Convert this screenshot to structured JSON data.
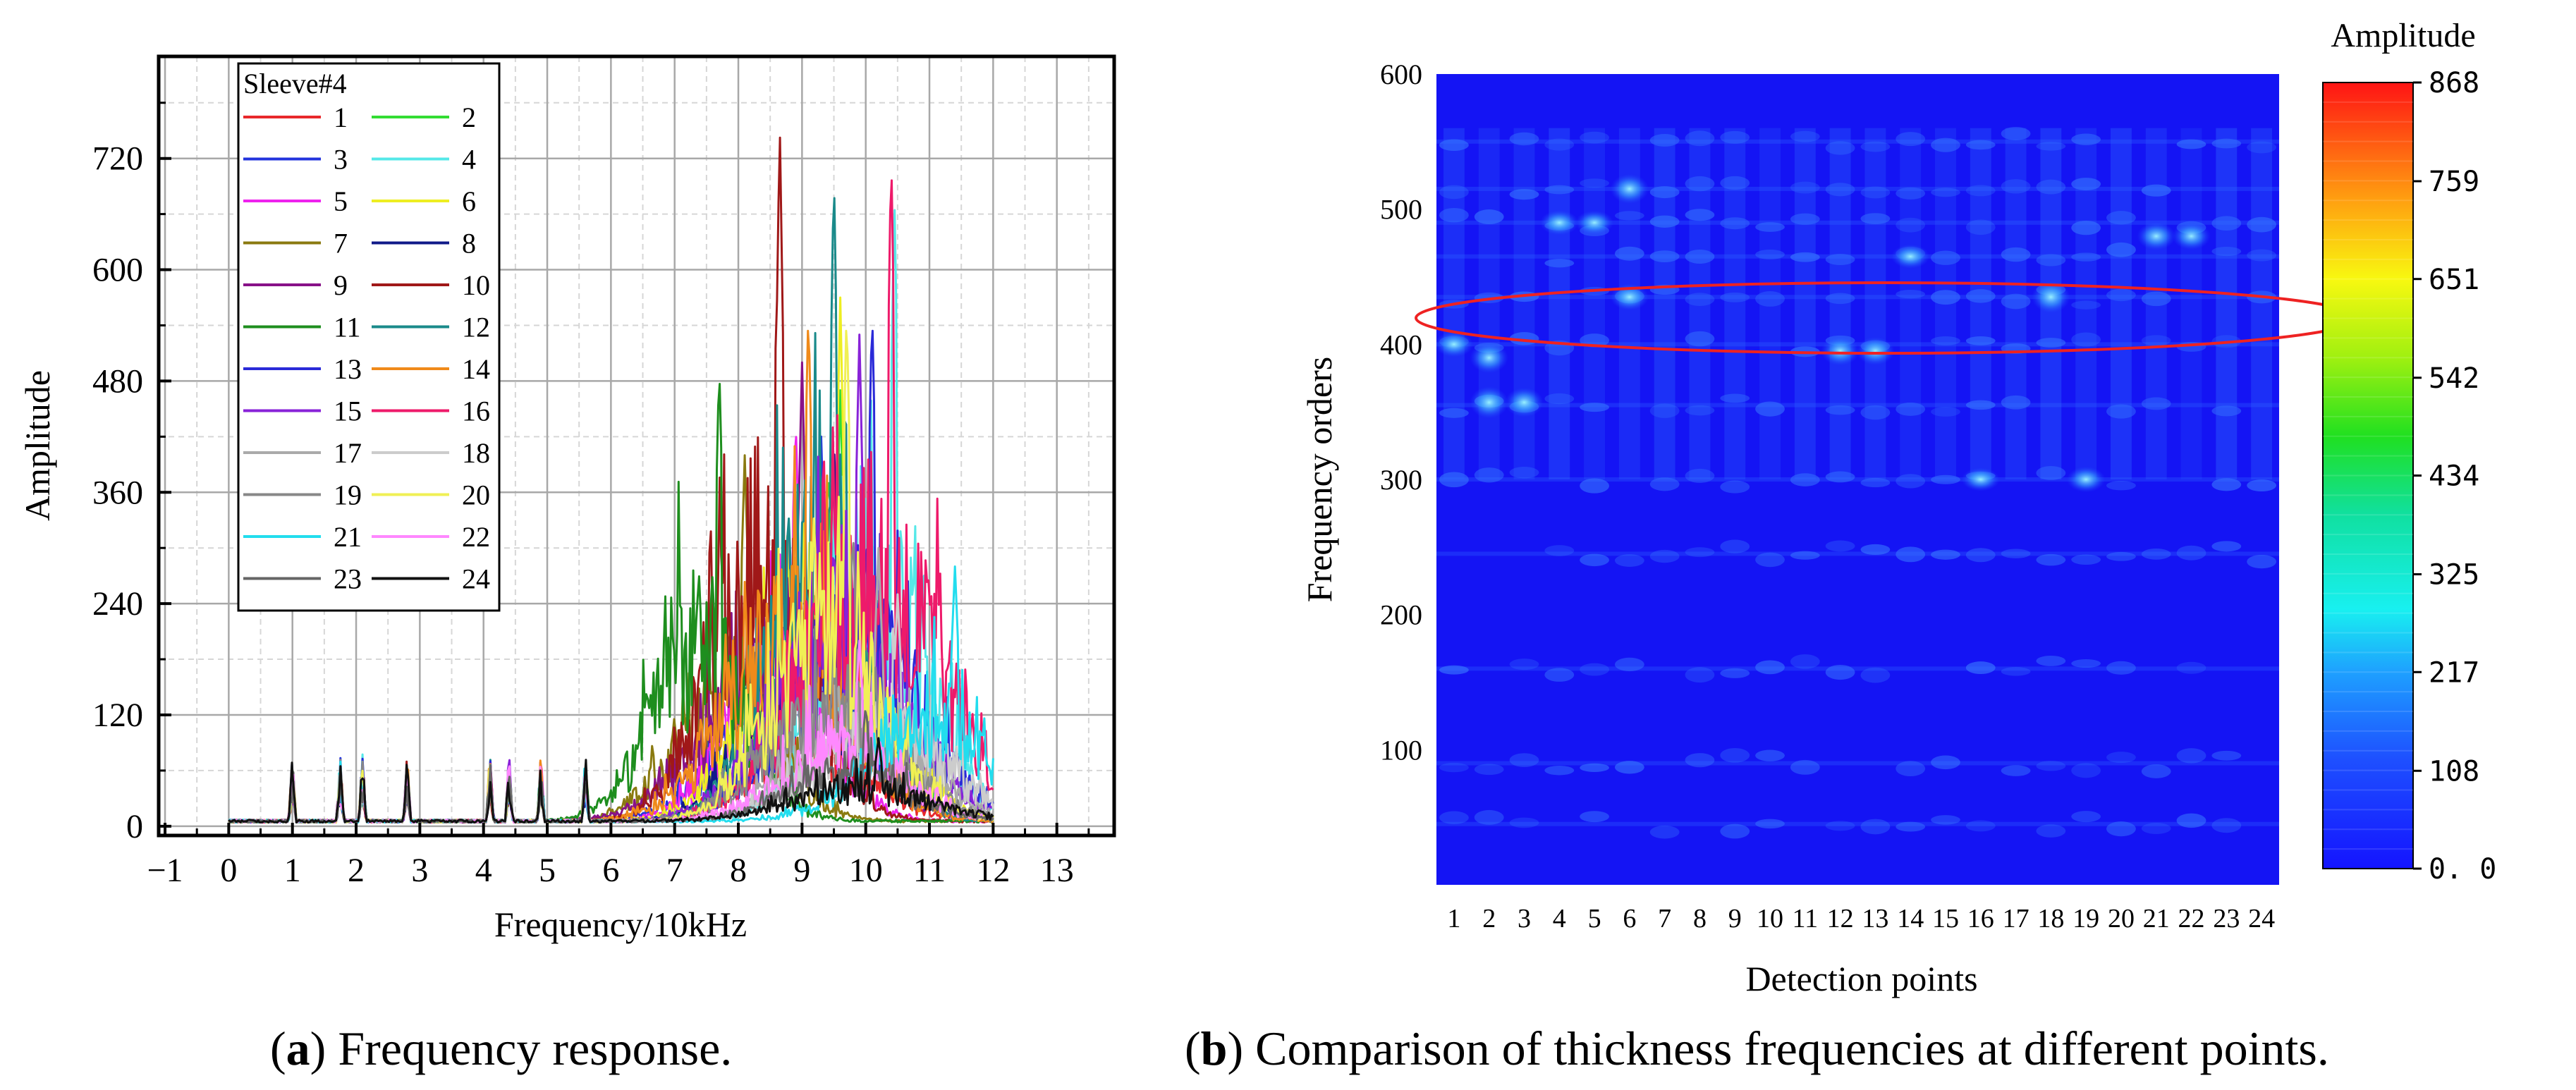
{
  "chart_data": [
    {
      "type": "line",
      "title": "Frequency response",
      "xlabel": "Frequency/10kHz",
      "ylabel": "Amplitude",
      "xlim": [
        -1.1,
        13.9
      ],
      "ylim": [
        -10,
        830
      ],
      "xticks": [
        "−1",
        "0",
        "1",
        "2",
        "3",
        "4",
        "5",
        "6",
        "7",
        "8",
        "9",
        "10",
        "11",
        "12",
        "13"
      ],
      "yticks": [
        "0",
        "120",
        "240",
        "360",
        "480",
        "600",
        "720"
      ],
      "grid": true,
      "legend": {
        "title": "Sleeve#4",
        "placement": "top-left",
        "entries": [
          "1",
          "2",
          "3",
          "4",
          "5",
          "6",
          "7",
          "8",
          "9",
          "10",
          "11",
          "12",
          "13",
          "14",
          "15",
          "16",
          "17",
          "18",
          "19",
          "20",
          "21",
          "22",
          "23",
          "24"
        ]
      },
      "series_colors": [
        "#e8282b",
        "#33dd33",
        "#2233dd",
        "#55e8e8",
        "#ee22ee",
        "#eeee22",
        "#8a7a10",
        "#101a88",
        "#881288",
        "#a01818",
        "#1e8e1e",
        "#1a8a8a",
        "#2a2ad8",
        "#f08a1a",
        "#8822d8",
        "#ee1a6a",
        "#aaaaaa",
        "#cccccc",
        "#888888",
        "#f0f055",
        "#22ddee",
        "#ff88ff",
        "#666666",
        "#111111"
      ],
      "series_peaks": [
        {
          "name": "1",
          "x": 9.4,
          "y": 190
        },
        {
          "name": "2",
          "x": 9.6,
          "y": 470
        },
        {
          "name": "3",
          "x": 9.3,
          "y": 420
        },
        {
          "name": "4",
          "x": 10.45,
          "y": 680
        },
        {
          "name": "5",
          "x": 8.9,
          "y": 440
        },
        {
          "name": "6",
          "x": 9.6,
          "y": 570
        },
        {
          "name": "7",
          "x": 8.1,
          "y": 400
        },
        {
          "name": "8",
          "x": 9.5,
          "y": 420
        },
        {
          "name": "9",
          "x": 9.0,
          "y": 500
        },
        {
          "name": "10",
          "x": 8.65,
          "y": 760
        },
        {
          "name": "11",
          "x": 7.7,
          "y": 500
        },
        {
          "name": "12",
          "x": 9.5,
          "y": 710
        },
        {
          "name": "13",
          "x": 10.1,
          "y": 560
        },
        {
          "name": "14",
          "x": 9.1,
          "y": 560
        },
        {
          "name": "15",
          "x": 9.9,
          "y": 530
        },
        {
          "name": "16",
          "x": 10.4,
          "y": 730
        },
        {
          "name": "17",
          "x": 10.2,
          "y": 300
        },
        {
          "name": "18",
          "x": 10.5,
          "y": 250
        },
        {
          "name": "19",
          "x": 9.8,
          "y": 320
        },
        {
          "name": "20",
          "x": 9.7,
          "y": 560
        },
        {
          "name": "21",
          "x": 11.4,
          "y": 280
        },
        {
          "name": "22",
          "x": 9.9,
          "y": 200
        },
        {
          "name": "23",
          "x": 10.0,
          "y": 130
        },
        {
          "name": "24",
          "x": 10.2,
          "y": 95
        }
      ],
      "small_peaks_x": [
        1.0,
        1.75,
        2.1,
        2.8,
        4.1,
        4.4,
        4.9,
        5.6
      ],
      "caption_label": "a",
      "caption_text": " Frequency response."
    },
    {
      "type": "heatmap",
      "xlabel": "Detection points",
      "ylabel": "Frequency orders",
      "x": [
        "1",
        "2",
        "3",
        "4",
        "5",
        "6",
        "7",
        "8",
        "9",
        "10",
        "11",
        "12",
        "13",
        "14",
        "15",
        "16",
        "17",
        "18",
        "19",
        "20",
        "21",
        "22",
        "23",
        "24"
      ],
      "ylim": [
        0,
        600
      ],
      "yticks": [
        "100",
        "200",
        "300",
        "400",
        "500",
        "600"
      ],
      "colorbar": {
        "title": "Amplitude",
        "range": [
          0,
          868
        ],
        "ticks": [
          "0. 0",
          "108",
          "217",
          "325",
          "434",
          "542",
          "651",
          "759",
          "868"
        ]
      },
      "bright_spots": [
        {
          "x": "1",
          "y": 400,
          "v": 150
        },
        {
          "x": "2",
          "y": 390,
          "v": 210
        },
        {
          "x": "2",
          "y": 357,
          "v": 230
        },
        {
          "x": "3",
          "y": 357,
          "v": 200
        },
        {
          "x": "4",
          "y": 490,
          "v": 140
        },
        {
          "x": "5",
          "y": 490,
          "v": 130
        },
        {
          "x": "6",
          "y": 515,
          "v": 200
        },
        {
          "x": "6",
          "y": 435,
          "v": 160
        },
        {
          "x": "12",
          "y": 395,
          "v": 190
        },
        {
          "x": "13",
          "y": 395,
          "v": 180
        },
        {
          "x": "14",
          "y": 465,
          "v": 130
        },
        {
          "x": "16",
          "y": 300,
          "v": 120
        },
        {
          "x": "18",
          "y": 435,
          "v": 230
        },
        {
          "x": "19",
          "y": 300,
          "v": 150
        },
        {
          "x": "21",
          "y": 480,
          "v": 180
        },
        {
          "x": "22",
          "y": 480,
          "v": 170
        }
      ],
      "highlight": {
        "shape": "ellipse",
        "y_center": 420,
        "color": "#ee2222"
      },
      "caption_label": "b",
      "caption_text": " Comparison of thickness frequencies at different points."
    }
  ]
}
